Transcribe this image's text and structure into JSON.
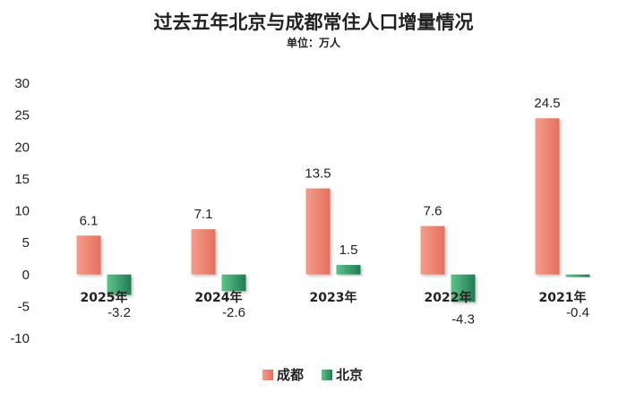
{
  "chart_data": {
    "type": "bar",
    "title": "过去五年北京与成都常住人口增量情况",
    "subtitle": "单位：万人",
    "categories": [
      "2025年",
      "2024年",
      "2023年",
      "2022年",
      "2021年"
    ],
    "series": [
      {
        "name": "成都",
        "values": [
          6.1,
          7.1,
          13.5,
          7.6,
          24.5
        ],
        "color": "#e8735e"
      },
      {
        "name": "北京",
        "values": [
          -3.2,
          -2.6,
          1.5,
          -4.3,
          -0.4
        ],
        "color": "#2e9a63"
      }
    ],
    "ylim": [
      -10,
      30
    ],
    "yticks": [
      "30",
      "25",
      "20",
      "15",
      "10",
      "5",
      "0",
      "-5",
      "-10"
    ],
    "grid": false,
    "legend_position": "bottom"
  }
}
